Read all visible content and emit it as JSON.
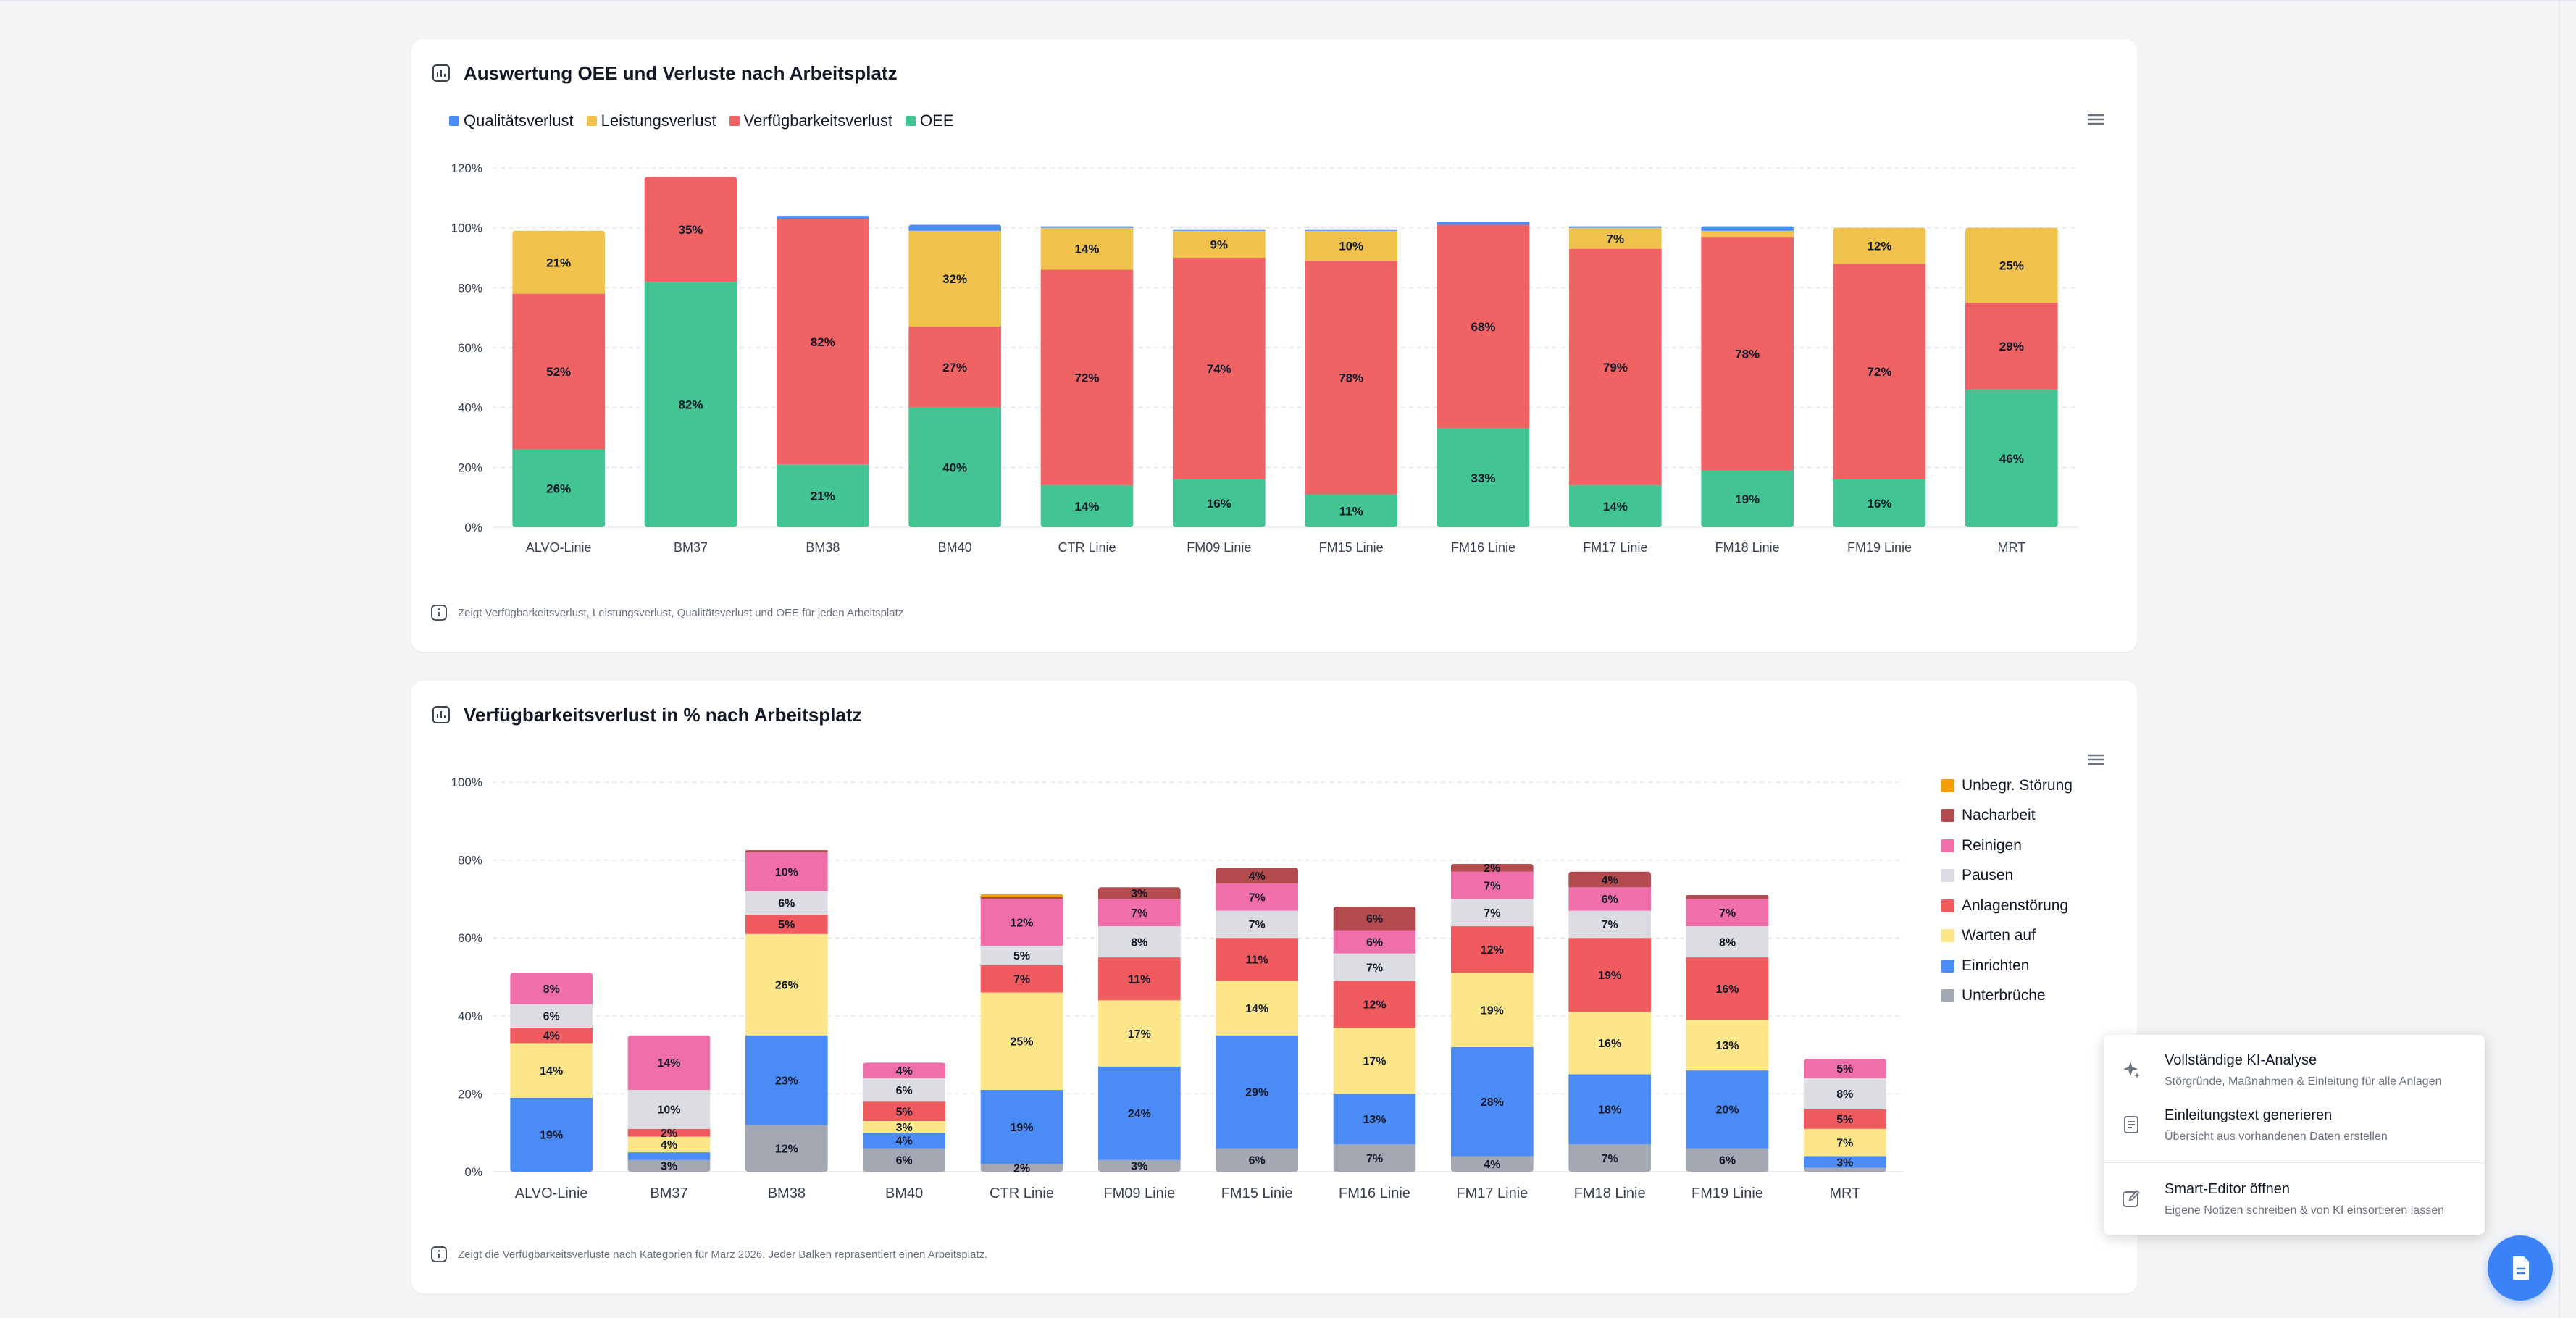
{
  "card1": {
    "title": "Auswertung OEE und Verluste nach Arbeitsplatz",
    "footnote": "Zeigt Verfügbarkeitsverlust, Leistungsverlust, Qualitätsverlust und OEE für jeden Arbeitsplatz"
  },
  "card2": {
    "title": "Verfügbarkeitsverlust in % nach Arbeitsplatz",
    "footnote": "Zeigt die Verfügbarkeitsverluste nach Kategorien für März 2026. Jeder Balken repräsentiert einen Arbeitsplatz."
  },
  "popup": {
    "items": [
      {
        "title": "Vollständige KI-Analyse",
        "subtitle": "Störgründe, Maßnahmen & Einleitung für alle Anlagen"
      },
      {
        "title": "Einleitungstext generieren",
        "subtitle": "Übersicht aus vorhandenen Daten erstellen"
      },
      {
        "title": "Smart-Editor öffnen",
        "subtitle": "Eigene Notizen schreiben & von KI einsortieren lassen"
      }
    ]
  },
  "chart_data": [
    {
      "type": "bar",
      "stacked": true,
      "title": "Auswertung OEE und Verluste nach Arbeitsplatz",
      "categories": [
        "ALVO-Linie",
        "BM37",
        "BM38",
        "BM40",
        "CTR Linie",
        "FM09 Linie",
        "FM15 Linie",
        "FM16 Linie",
        "FM17 Linie",
        "FM18 Linie",
        "FM19 Linie",
        "MRT"
      ],
      "ylim": [
        0,
        120
      ],
      "yticks": [
        "0%",
        "20%",
        "40%",
        "60%",
        "80%",
        "100%",
        "120%"
      ],
      "grid": true,
      "legend_position": "top-left",
      "series": [
        {
          "name": "OEE",
          "color": "#42c593",
          "values": [
            26,
            82,
            21,
            40,
            14,
            16,
            11,
            33,
            14,
            19,
            16,
            46
          ],
          "labels": [
            "26%",
            "82%",
            "21%",
            "40%",
            "14%",
            "16%",
            "11%",
            "33%",
            "14%",
            "19%",
            "16%",
            "46%"
          ]
        },
        {
          "name": "Verfügbarkeitsverlust",
          "color": "#ef6365",
          "values": [
            52,
            35,
            82,
            27,
            72,
            74,
            78,
            68,
            79,
            78,
            72,
            29
          ],
          "labels": [
            "52%",
            "35%",
            "82%",
            "27%",
            "72%",
            "74%",
            "78%",
            "68%",
            "79%",
            "78%",
            "72%",
            "29%"
          ]
        },
        {
          "name": "Leistungsverlust",
          "color": "#f0c14b",
          "values": [
            21,
            0,
            0,
            32,
            14,
            9,
            10,
            0,
            7,
            2,
            12,
            25
          ],
          "labels": [
            "21%",
            "",
            "",
            "32%",
            "14%",
            "9%",
            "10%",
            "",
            "7%",
            "",
            "12%",
            "25%"
          ]
        },
        {
          "name": "Qualitätsverlust",
          "color": "#4b8bf5",
          "values": [
            0,
            0,
            1,
            2,
            0.5,
            0.5,
            0.5,
            1,
            0.5,
            1.5,
            0,
            0
          ],
          "labels": [
            "",
            "",
            "",
            "",
            "",
            "",
            "",
            "",
            "",
            "",
            "",
            ""
          ]
        }
      ],
      "legend_order": [
        "Qualitätsverlust",
        "Leistungsverlust",
        "Verfügbarkeitsverlust",
        "OEE"
      ]
    },
    {
      "type": "bar",
      "stacked": true,
      "title": "Verfügbarkeitsverlust in % nach Arbeitsplatz",
      "categories": [
        "ALVO-Linie",
        "BM37",
        "BM38",
        "BM40",
        "CTR Linie",
        "FM09 Linie",
        "FM15 Linie",
        "FM16 Linie",
        "FM17 Linie",
        "FM18 Linie",
        "FM19 Linie",
        "MRT"
      ],
      "ylim": [
        0,
        100
      ],
      "yticks": [
        "0%",
        "20%",
        "40%",
        "60%",
        "80%",
        "100%"
      ],
      "grid": true,
      "legend_position": "right",
      "series": [
        {
          "name": "Unterbrüche",
          "color": "#a3a8b3",
          "values": [
            0,
            3,
            12,
            6,
            2,
            3,
            6,
            7,
            4,
            7,
            6,
            1
          ],
          "labels": [
            "",
            "3%",
            "12%",
            "6%",
            "2%",
            "3%",
            "6%",
            "7%",
            "4%",
            "7%",
            "6%",
            ""
          ]
        },
        {
          "name": "Einrichten",
          "color": "#4b8bf5",
          "values": [
            19,
            2,
            23,
            4,
            19,
            24,
            29,
            13,
            28,
            18,
            20,
            3
          ],
          "labels": [
            "19%",
            "",
            "23%",
            "4%",
            "19%",
            "24%",
            "29%",
            "13%",
            "28%",
            "18%",
            "20%",
            "3%"
          ]
        },
        {
          "name": "Warten auf",
          "color": "#fde68a",
          "values": [
            14,
            4,
            26,
            3,
            25,
            17,
            14,
            17,
            19,
            16,
            13,
            7
          ],
          "labels": [
            "14%",
            "4%",
            "26%",
            "3%",
            "25%",
            "17%",
            "14%",
            "17%",
            "19%",
            "16%",
            "13%",
            "7%"
          ]
        },
        {
          "name": "Anlagenstörung",
          "color": "#ef5b5e",
          "values": [
            4,
            2,
            5,
            5,
            7,
            11,
            11,
            12,
            12,
            19,
            16,
            5
          ],
          "labels": [
            "4%",
            "2%",
            "5%",
            "5%",
            "7%",
            "11%",
            "11%",
            "12%",
            "12%",
            "19%",
            "16%",
            "5%"
          ]
        },
        {
          "name": "Pausen",
          "color": "#dcdde3",
          "values": [
            6,
            10,
            6,
            6,
            5,
            8,
            7,
            7,
            7,
            7,
            8,
            8
          ],
          "labels": [
            "6%",
            "10%",
            "6%",
            "6%",
            "5%",
            "8%",
            "7%",
            "7%",
            "7%",
            "7%",
            "8%",
            "8%"
          ]
        },
        {
          "name": "Reinigen",
          "color": "#f06fab",
          "values": [
            8,
            14,
            10,
            4,
            12,
            7,
            7,
            6,
            7,
            6,
            7,
            5
          ],
          "labels": [
            "8%",
            "14%",
            "10%",
            "4%",
            "12%",
            "7%",
            "7%",
            "6%",
            "7%",
            "6%",
            "7%",
            "5%"
          ]
        },
        {
          "name": "Nacharbeit",
          "color": "#b34a4d",
          "values": [
            0,
            0,
            0.5,
            0,
            0.5,
            3,
            4,
            6,
            2,
            4,
            1,
            0
          ],
          "labels": [
            "",
            "",
            "",
            "",
            "",
            "3%",
            "4%",
            "6%",
            "2%",
            "4%",
            "",
            ""
          ]
        },
        {
          "name": "Unbegr. Störung",
          "color": "#f59e0b",
          "values": [
            0,
            0,
            0,
            0,
            0.7,
            0,
            0,
            0,
            0,
            0,
            0,
            0
          ],
          "labels": [
            "",
            "",
            "",
            "",
            "",
            "",
            "",
            "",
            "",
            "",
            "",
            ""
          ]
        }
      ],
      "legend_order": [
        "Unbegr. Störung",
        "Nacharbeit",
        "Reinigen",
        "Pausen",
        "Anlagenstörung",
        "Warten auf",
        "Einrichten",
        "Unterbrüche"
      ]
    }
  ]
}
